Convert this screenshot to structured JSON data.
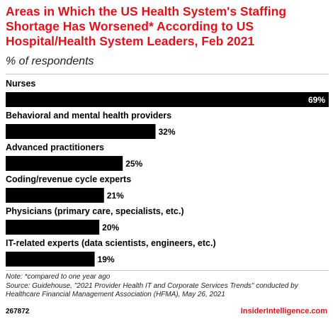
{
  "header": {
    "title": "Areas in Which the US Health System's Staffing Shortage Has Worsened* According to US Hospital/Health System Leaders, Feb 2021",
    "subtitle": "% of respondents"
  },
  "chart_data": {
    "type": "bar",
    "orientation": "horizontal",
    "categories": [
      "Nurses",
      "Behavioral and mental health providers",
      "Advanced practitioners",
      "Coding/revenue cycle experts",
      "Physicians (primary care, specialists, etc.)",
      "IT-related experts (data scientists, engineers, etc.)"
    ],
    "values": [
      69,
      32,
      25,
      21,
      20,
      19
    ],
    "value_labels": [
      "69%",
      "32%",
      "25%",
      "21%",
      "20%",
      "19%"
    ],
    "unit": "%",
    "xlim": [
      0,
      69
    ],
    "bar_color": "#000000",
    "grid": false,
    "legend": "none"
  },
  "footer": {
    "note": "Note: *compared to one year ago",
    "source": "Source: Guidehouse, \"2021 Provider Health IT and Corporate Services Trends\" conducted by Healthcare Financial Management Association (HFMA), May 26, 2021",
    "chart_id": "267872",
    "brand": "InsiderIntelligence.com"
  },
  "colors": {
    "accent": "#e0131c",
    "text": "#000000",
    "rule": "#c8c8c8"
  }
}
